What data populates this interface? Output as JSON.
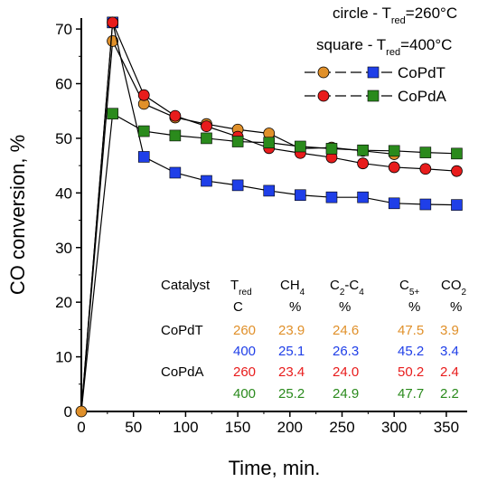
{
  "chart_data": {
    "type": "line",
    "xlabel": "Time,   min.",
    "ylabel": "CO conversion,   %",
    "xlim": [
      0,
      370
    ],
    "ylim": [
      0,
      72
    ],
    "xticks": [
      0,
      50,
      100,
      150,
      200,
      250,
      300,
      350
    ],
    "yticks": [
      0,
      10,
      20,
      30,
      40,
      50,
      60,
      70
    ],
    "legend_notes": {
      "circle": "circle - T",
      "circle_sub": "red",
      "circle_val": "=260°C",
      "square": "square - T",
      "square_sub": "red",
      "square_val": "=400°C"
    },
    "legend_entries": [
      "CoPdT",
      "CoPdA"
    ],
    "series": [
      {
        "name": "CoPdT",
        "treat": "260°C",
        "marker": "circle",
        "color": "#e0902a",
        "x": [
          0,
          30,
          60,
          90,
          120,
          150,
          180,
          210,
          240,
          270,
          300,
          330,
          360
        ],
        "y": [
          0,
          67.8,
          56.3,
          53.8,
          52.6,
          51.6,
          50.9,
          48.1,
          48.3,
          47.7,
          47.1,
          null,
          null
        ]
      },
      {
        "name": "CoPdT",
        "treat": "400°C",
        "marker": "square",
        "color": "#1f3fe8",
        "x": [
          0,
          30,
          60,
          90,
          120,
          150,
          180,
          210,
          240,
          270,
          300,
          330,
          360
        ],
        "y": [
          0,
          71.2,
          46.6,
          43.7,
          42.2,
          41.4,
          40.4,
          39.6,
          39.2,
          39.2,
          38.1,
          37.9,
          37.8
        ]
      },
      {
        "name": "CoPdA",
        "treat": "260°C",
        "marker": "circle",
        "color": "#e81c1c",
        "x": [
          0,
          30,
          60,
          90,
          120,
          150,
          180,
          210,
          240,
          270,
          300,
          330,
          360
        ],
        "y": [
          0,
          71.2,
          57.9,
          54.1,
          52.2,
          50.3,
          48.2,
          47.3,
          46.5,
          45.4,
          44.7,
          44.4,
          44.0
        ]
      },
      {
        "name": "CoPdA",
        "treat": "400°C",
        "marker": "square",
        "color": "#2a8a1c",
        "x": [
          0,
          30,
          60,
          90,
          120,
          150,
          180,
          210,
          240,
          270,
          300,
          330,
          360
        ],
        "y": [
          0,
          54.5,
          51.3,
          50.5,
          50.0,
          49.4,
          49.2,
          48.5,
          48.1,
          47.8,
          47.7,
          47.4,
          47.2
        ]
      }
    ]
  },
  "table": {
    "headers": [
      {
        "main": "Catalyst",
        "sub": ""
      },
      {
        "main": "T",
        "sub": "red"
      },
      {
        "main": "CH",
        "sub": "4"
      },
      {
        "main": "C",
        "sub": "2",
        "main2": "-C",
        "sub2": "4"
      },
      {
        "main": "C",
        "sub": "5+"
      },
      {
        "main": "CO",
        "sub": "2"
      }
    ],
    "units": [
      "",
      "C",
      "%",
      "%",
      "%",
      "%"
    ],
    "rows": [
      {
        "catalyst": "CoPdT",
        "color": "#e0902a",
        "values": [
          "260",
          "23.9",
          "24.6",
          "47.5",
          "3.9"
        ]
      },
      {
        "catalyst": "",
        "color": "#1f3fe8",
        "values": [
          "400",
          "25.1",
          "26.3",
          "45.2",
          "3.4"
        ]
      },
      {
        "catalyst": "CoPdA",
        "color": "#e81c1c",
        "values": [
          "260",
          "23.4",
          "24.0",
          "50.2",
          "2.4"
        ]
      },
      {
        "catalyst": "",
        "color": "#2a8a1c",
        "values": [
          "400",
          "25.2",
          "24.9",
          "47.7",
          "2.2"
        ]
      }
    ]
  }
}
